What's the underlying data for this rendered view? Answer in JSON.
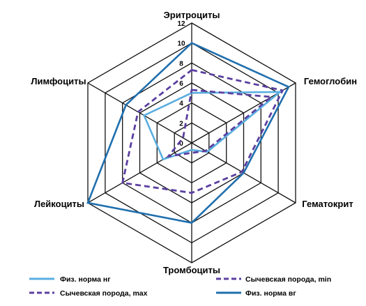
{
  "chart_data": {
    "type": "radar",
    "axes": [
      "Эритроциты",
      "Гемоглобин",
      "Гематокрит",
      "Тромбоциты",
      "Лейкоциты",
      "Лимфоциты"
    ],
    "rlim": [
      0,
      12
    ],
    "ticks": [
      "0",
      "2",
      "4",
      "6",
      "8",
      "10",
      "12"
    ],
    "legend_position": "bottom",
    "series": [
      {
        "name": "Физ. норма нг",
        "color": "#5aaee0",
        "dash": "solid",
        "values": [
          5.0,
          10.2,
          1.8,
          0.7,
          3.3,
          5.5
        ]
      },
      {
        "name": "Сычевская порода, max",
        "color": "#5b3fa0",
        "dash": "dashed",
        "values": [
          7.3,
          10.5,
          5.8,
          5.0,
          8.0,
          6.2
        ]
      },
      {
        "name": "Сычевская порода, min",
        "color": "#5b3fa0",
        "dash": "dashed",
        "values": [
          5.3,
          9.2,
          1.6,
          1.0,
          2.7,
          1.0
        ]
      },
      {
        "name": "Физ. норма вг",
        "color": "#1f6fae",
        "dash": "solid",
        "values": [
          10.0,
          11.2,
          6.0,
          8.0,
          12.0,
          7.6
        ]
      }
    ]
  }
}
